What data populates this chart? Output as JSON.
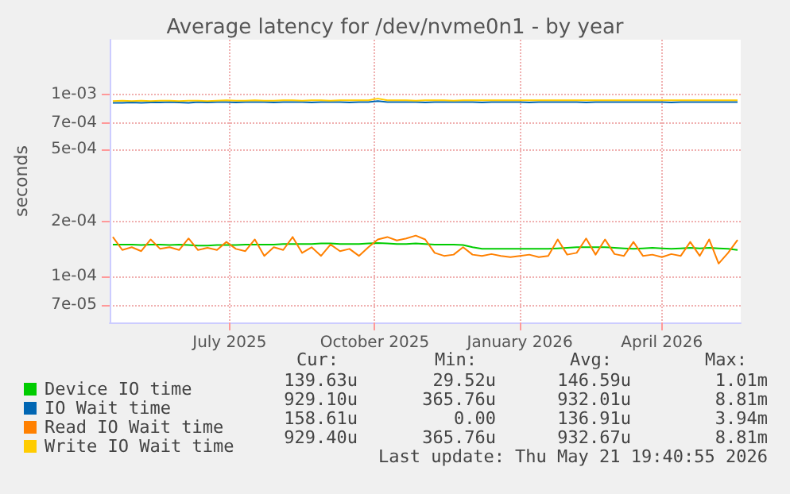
{
  "chart_data": {
    "type": "line",
    "title": "Average latency for /dev/nvme0n1 - by year",
    "ylabel": "seconds",
    "log": "y",
    "grid": true,
    "legend": "bottom left",
    "marker": "none",
    "line_style": "solid",
    "x": [
      "2025-04-18",
      "2025-04-24",
      "2025-04-30",
      "2025-05-06",
      "2025-05-12",
      "2025-05-18",
      "2025-05-24",
      "2025-05-30",
      "2025-06-05",
      "2025-06-11",
      "2025-06-17",
      "2025-06-23",
      "2025-06-29",
      "2025-07-05",
      "2025-07-11",
      "2025-07-17",
      "2025-07-23",
      "2025-07-29",
      "2025-08-04",
      "2025-08-10",
      "2025-08-16",
      "2025-08-22",
      "2025-08-28",
      "2025-09-03",
      "2025-09-09",
      "2025-09-15",
      "2025-09-21",
      "2025-09-27",
      "2025-10-03",
      "2025-10-09",
      "2025-10-15",
      "2025-10-21",
      "2025-10-27",
      "2025-11-02",
      "2025-11-08",
      "2025-11-14",
      "2025-11-20",
      "2025-11-26",
      "2025-12-02",
      "2025-12-08",
      "2025-12-14",
      "2025-12-20",
      "2025-12-26",
      "2026-01-01",
      "2026-01-07",
      "2026-01-13",
      "2026-01-19",
      "2026-01-25",
      "2026-01-31",
      "2026-02-06",
      "2026-02-12",
      "2026-02-18",
      "2026-02-24",
      "2026-03-02",
      "2026-03-08",
      "2026-03-14",
      "2026-03-20",
      "2026-03-26",
      "2026-04-01",
      "2026-04-07",
      "2026-04-13",
      "2026-04-19",
      "2026-04-25",
      "2026-05-01",
      "2026-05-07",
      "2026-05-13",
      "2026-05-19"
    ],
    "xlim": [
      "2025-04-16",
      "2026-05-21"
    ],
    "xticks": [
      {
        "value": "2025-07-01",
        "label": "July 2025"
      },
      {
        "value": "2025-10-01",
        "label": "October 2025"
      },
      {
        "value": "2026-01-01",
        "label": "January 2026"
      },
      {
        "value": "2026-04-01",
        "label": "April 2026"
      }
    ],
    "ylim": [
      5.6e-05,
      0.002
    ],
    "yticks": [
      {
        "value": 7e-05,
        "label": "7e-05"
      },
      {
        "value": 0.0001,
        "label": "1e-04"
      },
      {
        "value": 0.0002,
        "label": "2e-04"
      },
      {
        "value": 0.0005,
        "label": "5e-04"
      },
      {
        "value": 0.0007,
        "label": "7e-04"
      },
      {
        "value": 0.001,
        "label": "1e-03"
      }
    ],
    "series": [
      {
        "name": "Device IO time",
        "color": "#00cc00",
        "values": [
          0.00015,
          0.00015,
          0.00015,
          0.000149,
          0.00015,
          0.00015,
          0.000149,
          0.00015,
          0.000149,
          0.000148,
          0.000148,
          0.000149,
          0.000149,
          0.000149,
          0.00015,
          0.00015,
          0.00015,
          0.00015,
          0.000151,
          0.000151,
          0.000151,
          0.000151,
          0.000152,
          0.000152,
          0.000151,
          0.000151,
          0.000151,
          0.000152,
          0.000153,
          0.000152,
          0.000151,
          0.000151,
          0.000152,
          0.000151,
          0.00015,
          0.00015,
          0.00015,
          0.000149,
          0.000145,
          0.000142,
          0.000142,
          0.000142,
          0.000142,
          0.000142,
          0.000142,
          0.000142,
          0.000142,
          0.000143,
          0.000144,
          0.000145,
          0.000145,
          0.000145,
          0.000145,
          0.000144,
          0.000143,
          0.000142,
          0.000143,
          0.000144,
          0.000143,
          0.000142,
          0.000143,
          0.000144,
          0.000143,
          0.000144,
          0.000143,
          0.000142,
          0.00014
        ]
      },
      {
        "name": "IO Wait time",
        "color": "#0066b3",
        "values": [
          0.0009,
          0.0009,
          0.000905,
          0.0009,
          0.000905,
          0.000905,
          0.00091,
          0.000905,
          0.0009,
          0.00091,
          0.000905,
          0.00091,
          0.00091,
          0.000905,
          0.00091,
          0.00091,
          0.00091,
          0.000905,
          0.00091,
          0.00091,
          0.00091,
          0.000905,
          0.00091,
          0.00091,
          0.00091,
          0.000905,
          0.00091,
          0.00091,
          0.00092,
          0.00091,
          0.00091,
          0.00091,
          0.00091,
          0.000905,
          0.00091,
          0.00091,
          0.00091,
          0.00091,
          0.00091,
          0.000905,
          0.00091,
          0.00091,
          0.00091,
          0.00091,
          0.000905,
          0.00091,
          0.00091,
          0.00091,
          0.00091,
          0.00091,
          0.000905,
          0.00091,
          0.00091,
          0.00091,
          0.00091,
          0.00091,
          0.00091,
          0.00091,
          0.00091,
          0.000905,
          0.00091,
          0.00091,
          0.00091,
          0.00091,
          0.00091,
          0.00091,
          0.00091
        ]
      },
      {
        "name": "Read IO Wait time",
        "color": "#ff8000",
        "values": [
          0.000165,
          0.00014,
          0.000145,
          0.000138,
          0.00016,
          0.000142,
          0.000145,
          0.00014,
          0.000162,
          0.00014,
          0.000144,
          0.00014,
          0.000155,
          0.000142,
          0.000138,
          0.00016,
          0.00013,
          0.000145,
          0.00014,
          0.000165,
          0.000135,
          0.000145,
          0.00013,
          0.00015,
          0.000138,
          0.000142,
          0.00013,
          0.000145,
          0.00016,
          0.000165,
          0.000158,
          0.000162,
          0.000168,
          0.00016,
          0.000135,
          0.00013,
          0.000132,
          0.000145,
          0.000132,
          0.00013,
          0.000133,
          0.00013,
          0.000128,
          0.00013,
          0.000132,
          0.000128,
          0.00013,
          0.00016,
          0.000132,
          0.000135,
          0.000162,
          0.000132,
          0.00016,
          0.000133,
          0.00013,
          0.000155,
          0.00013,
          0.000132,
          0.000128,
          0.000133,
          0.00013,
          0.000155,
          0.00013,
          0.00016,
          0.000118,
          0.000135,
          0.000159
        ]
      },
      {
        "name": "Write IO Wait time",
        "color": "#ffcc00",
        "values": [
          0.00092,
          0.000925,
          0.00092,
          0.000925,
          0.00092,
          0.000925,
          0.000925,
          0.00092,
          0.000925,
          0.000925,
          0.00092,
          0.000925,
          0.00093,
          0.000925,
          0.000925,
          0.00093,
          0.000925,
          0.000925,
          0.00093,
          0.00093,
          0.000925,
          0.00093,
          0.00093,
          0.000925,
          0.00093,
          0.00093,
          0.00093,
          0.00093,
          0.00095,
          0.00093,
          0.00093,
          0.00093,
          0.000925,
          0.00093,
          0.00093,
          0.00093,
          0.000925,
          0.00093,
          0.00093,
          0.00093,
          0.00093,
          0.00093,
          0.00093,
          0.00093,
          0.00093,
          0.00093,
          0.00093,
          0.00093,
          0.00093,
          0.00093,
          0.00093,
          0.00093,
          0.00093,
          0.00093,
          0.00093,
          0.00093,
          0.00093,
          0.00093,
          0.00093,
          0.00093,
          0.00093,
          0.00093,
          0.00093,
          0.00093,
          0.00093,
          0.00093,
          0.00093
        ]
      }
    ],
    "annotations": [
      "Cur:",
      "Min:",
      "Avg:",
      "Max:",
      "139.63u",
      "29.52u",
      "146.59u",
      "1.01m",
      "929.10u",
      "365.76u",
      "932.01u",
      "8.81m",
      "158.61u",
      "0.00",
      "136.91u",
      "3.94m",
      "929.40u",
      "365.76u",
      "932.67u",
      "8.81m",
      "Last update: Thu May 21 19:40:55 2026"
    ]
  }
}
